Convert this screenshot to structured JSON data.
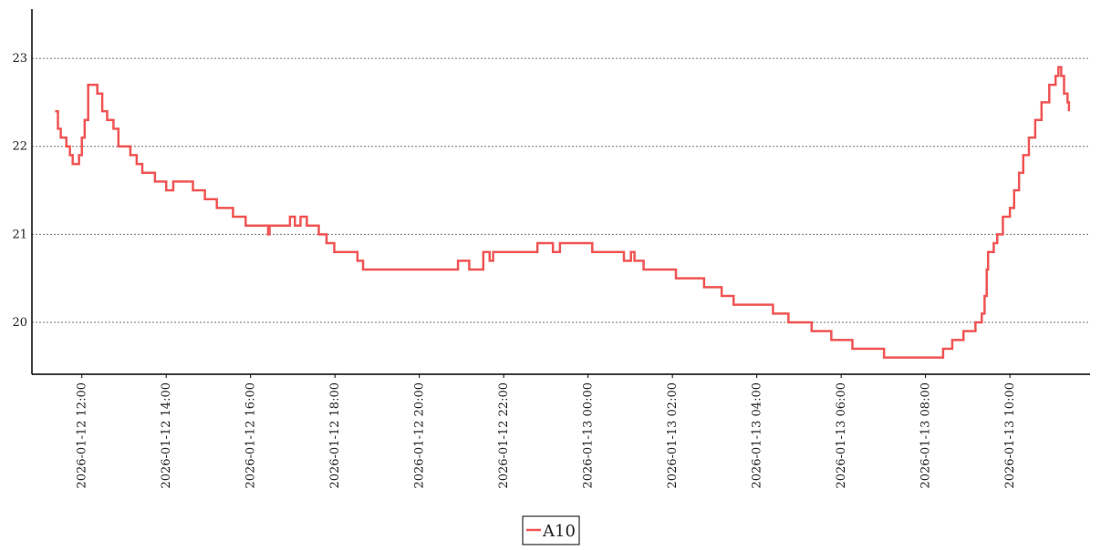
{
  "chart_data": {
    "type": "line",
    "drawstyle": "steps-post",
    "grid": true,
    "legend": "bottom",
    "xlim": [
      "2026-01-12 10:49",
      "2026-01-13 11:54"
    ],
    "xticks": [
      "2026-01-12 12:00",
      "2026-01-12 14:00",
      "2026-01-12 16:00",
      "2026-01-12 18:00",
      "2026-01-12 20:00",
      "2026-01-12 22:00",
      "2026-01-13 00:00",
      "2026-01-13 02:00",
      "2026-01-13 04:00",
      "2026-01-13 06:00",
      "2026-01-13 08:00",
      "2026-01-13 10:00"
    ],
    "ylim": [
      19.41,
      23.56
    ],
    "yticks": [
      20,
      21,
      22,
      23
    ],
    "x": [
      "2026-01-12 11:22",
      "2026-01-12 11:26",
      "2026-01-12 11:30",
      "2026-01-12 11:38",
      "2026-01-12 11:43",
      "2026-01-12 11:47",
      "2026-01-12 11:56",
      "2026-01-12 12:00",
      "2026-01-12 12:04",
      "2026-01-12 12:09",
      "2026-01-12 12:22",
      "2026-01-12 12:29",
      "2026-01-12 12:36",
      "2026-01-12 12:45",
      "2026-01-12 12:52",
      "2026-01-12 13:09",
      "2026-01-12 13:18",
      "2026-01-12 13:26",
      "2026-01-12 13:44",
      "2026-01-12 14:00",
      "2026-01-12 14:10",
      "2026-01-12 14:38",
      "2026-01-12 14:55",
      "2026-01-12 15:12",
      "2026-01-12 15:35",
      "2026-01-12 15:53",
      "2026-01-12 16:25",
      "2026-01-12 16:27",
      "2026-01-12 16:56",
      "2026-01-12 17:03",
      "2026-01-12 17:11",
      "2026-01-12 17:20",
      "2026-01-12 17:37",
      "2026-01-12 17:48",
      "2026-01-12 17:59",
      "2026-01-12 18:32",
      "2026-01-12 18:40",
      "2026-01-12 20:55",
      "2026-01-12 21:11",
      "2026-01-12 21:31",
      "2026-01-12 21:40",
      "2026-01-12 21:45",
      "2026-01-12 22:48",
      "2026-01-12 23:10",
      "2026-01-12 23:20",
      "2026-01-13 00:06",
      "2026-01-13 00:51",
      "2026-01-13 01:01",
      "2026-01-13 01:06",
      "2026-01-13 01:19",
      "2026-01-13 02:05",
      "2026-01-13 02:45",
      "2026-01-13 03:10",
      "2026-01-13 03:27",
      "2026-01-13 04:23",
      "2026-01-13 04:45",
      "2026-01-13 05:18",
      "2026-01-13 05:46",
      "2026-01-13 06:16",
      "2026-01-13 07:01",
      "2026-01-13 08:25",
      "2026-01-13 08:38",
      "2026-01-13 08:54",
      "2026-01-13 09:11",
      "2026-01-13 09:20",
      "2026-01-13 09:24",
      "2026-01-13 09:27",
      "2026-01-13 09:29",
      "2026-01-13 09:37",
      "2026-01-13 09:42",
      "2026-01-13 09:50",
      "2026-01-13 10:00",
      "2026-01-13 10:06",
      "2026-01-13 10:13",
      "2026-01-13 10:19",
      "2026-01-13 10:27",
      "2026-01-13 10:36",
      "2026-01-13 10:45",
      "2026-01-13 10:56",
      "2026-01-13 11:05",
      "2026-01-13 11:09",
      "2026-01-13 11:13",
      "2026-01-13 11:17",
      "2026-01-13 11:22",
      "2026-01-13 11:24"
    ],
    "series": [
      {
        "name": "A10",
        "color": "#f05454",
        "values": [
          22.4,
          22.2,
          22.1,
          22.0,
          21.9,
          21.8,
          21.9,
          22.1,
          22.3,
          22.7,
          22.6,
          22.4,
          22.3,
          22.2,
          22.0,
          21.9,
          21.8,
          21.7,
          21.6,
          21.5,
          21.6,
          21.5,
          21.4,
          21.3,
          21.2,
          21.1,
          21.0,
          21.1,
          21.2,
          21.1,
          21.2,
          21.1,
          21.0,
          20.9,
          20.8,
          20.7,
          20.6,
          20.7,
          20.6,
          20.8,
          20.7,
          20.8,
          20.9,
          20.8,
          20.9,
          20.8,
          20.7,
          20.8,
          20.7,
          20.6,
          20.5,
          20.4,
          20.3,
          20.2,
          20.1,
          20.0,
          19.9,
          19.8,
          19.7,
          19.6,
          19.7,
          19.8,
          19.9,
          20.0,
          20.1,
          20.3,
          20.6,
          20.8,
          20.9,
          21.0,
          21.2,
          21.3,
          21.5,
          21.7,
          21.9,
          22.1,
          22.3,
          22.5,
          22.7,
          22.8,
          22.9,
          22.8,
          22.6,
          22.5,
          22.4
        ]
      }
    ]
  }
}
